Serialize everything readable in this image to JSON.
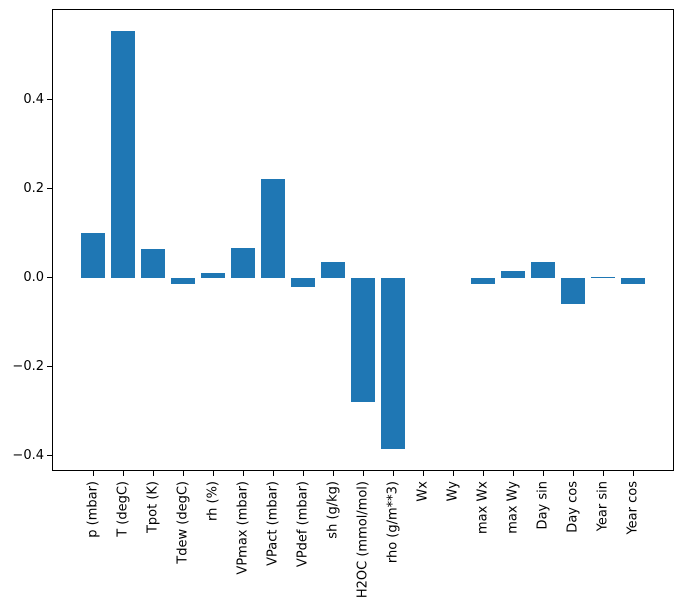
{
  "chart_data": {
    "type": "bar",
    "title": "",
    "xlabel": "",
    "ylabel": "",
    "categories": [
      "p (mbar)",
      "T (degC)",
      "Tpot (K)",
      "Tdew (degC)",
      "rh (%)",
      "VPmax (mbar)",
      "VPact (mbar)",
      "VPdef (mbar)",
      "sh (g/kg)",
      "H2OC (mmol/mol)",
      "rho (g/m**3)",
      "Wx",
      "Wy",
      "max Wx",
      "max Wy",
      "Day sin",
      "Day cos",
      "Year sin",
      "Year cos"
    ],
    "values": [
      0.1,
      0.555,
      0.065,
      -0.014,
      0.012,
      0.068,
      0.222,
      -0.021,
      0.035,
      -0.279,
      -0.385,
      0.0,
      0.0,
      -0.013,
      0.016,
      0.036,
      -0.059,
      0.002,
      -0.014
    ],
    "bar_color": "#1f77b4",
    "axis_color": "#000000",
    "background_color": "#ffffff",
    "ylim": [
      -0.432,
      0.602
    ],
    "yticks": {
      "values": [
        0.4,
        0.2,
        0.0,
        -0.2,
        -0.4
      ],
      "labels": [
        "0.4",
        "0.2",
        "0.0",
        "−0.2",
        "−0.4"
      ]
    },
    "x_tick_rotation": 90,
    "grid": false,
    "legend": false
  }
}
